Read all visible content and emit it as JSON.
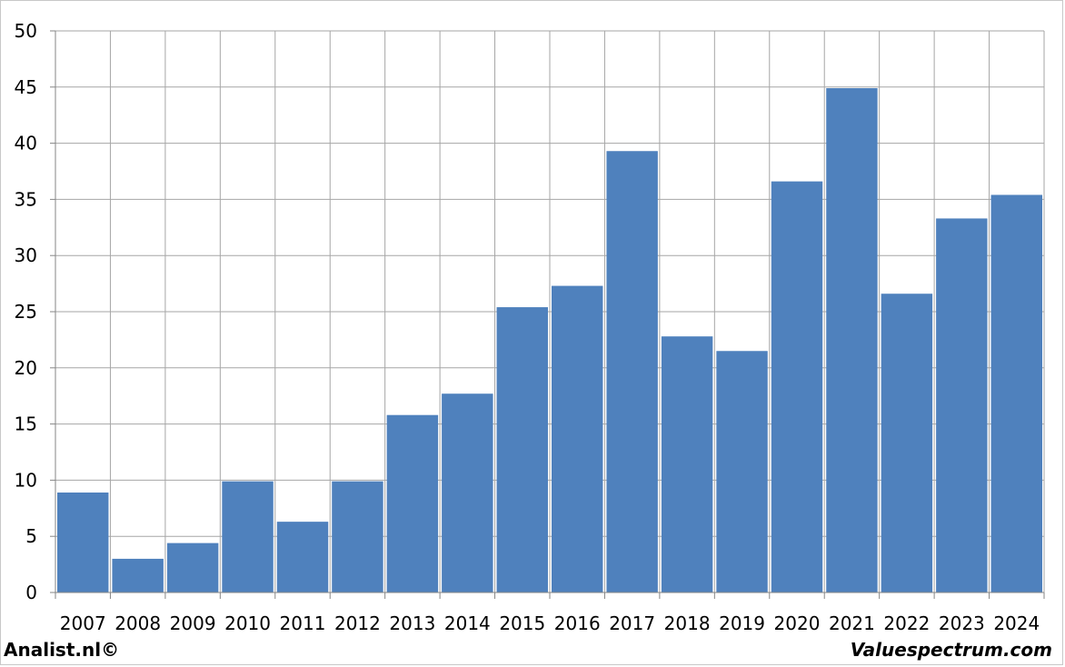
{
  "footer": {
    "left_text": "Analist.nl©",
    "right_text": "Valuespectrum.com"
  },
  "colors": {
    "bar": "#4f81bd",
    "grid": "#a6a6a6",
    "axis": "#868686"
  },
  "chart_data": {
    "type": "bar",
    "title": "",
    "xlabel": "",
    "ylabel": "",
    "categories": [
      "2007",
      "2008",
      "2009",
      "2010",
      "2011",
      "2012",
      "2013",
      "2014",
      "2015",
      "2016",
      "2017",
      "2018",
      "2019",
      "2020",
      "2021",
      "2022",
      "2023",
      "2024"
    ],
    "values": [
      8.9,
      3.0,
      4.4,
      9.9,
      6.3,
      9.9,
      15.8,
      17.7,
      25.4,
      27.3,
      39.3,
      22.8,
      21.5,
      36.6,
      44.9,
      26.6,
      33.3,
      35.4
    ],
    "ylim": [
      0,
      50
    ],
    "yticks": [
      0,
      5,
      10,
      15,
      20,
      25,
      30,
      35,
      40,
      45,
      50
    ],
    "grid": true,
    "legend": "none"
  }
}
